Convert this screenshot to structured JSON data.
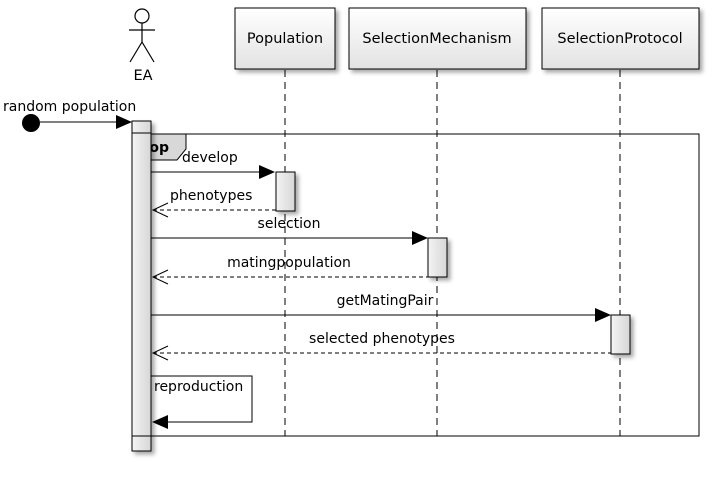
{
  "actor": {
    "name": "EA"
  },
  "participants": [
    {
      "name": "Population"
    },
    {
      "name": "SelectionMechanism"
    },
    {
      "name": "SelectionProtocol"
    }
  ],
  "fragment": {
    "operator": "loop"
  },
  "messages": {
    "found": "random population",
    "develop": "develop",
    "phenotypes": "phenotypes",
    "selection": "selection",
    "matingpopulation": "matingpopulation",
    "getMatingPair": "getMatingPair",
    "selected_phenotypes": "selected phenotypes",
    "reproduction": "reproduction"
  }
}
